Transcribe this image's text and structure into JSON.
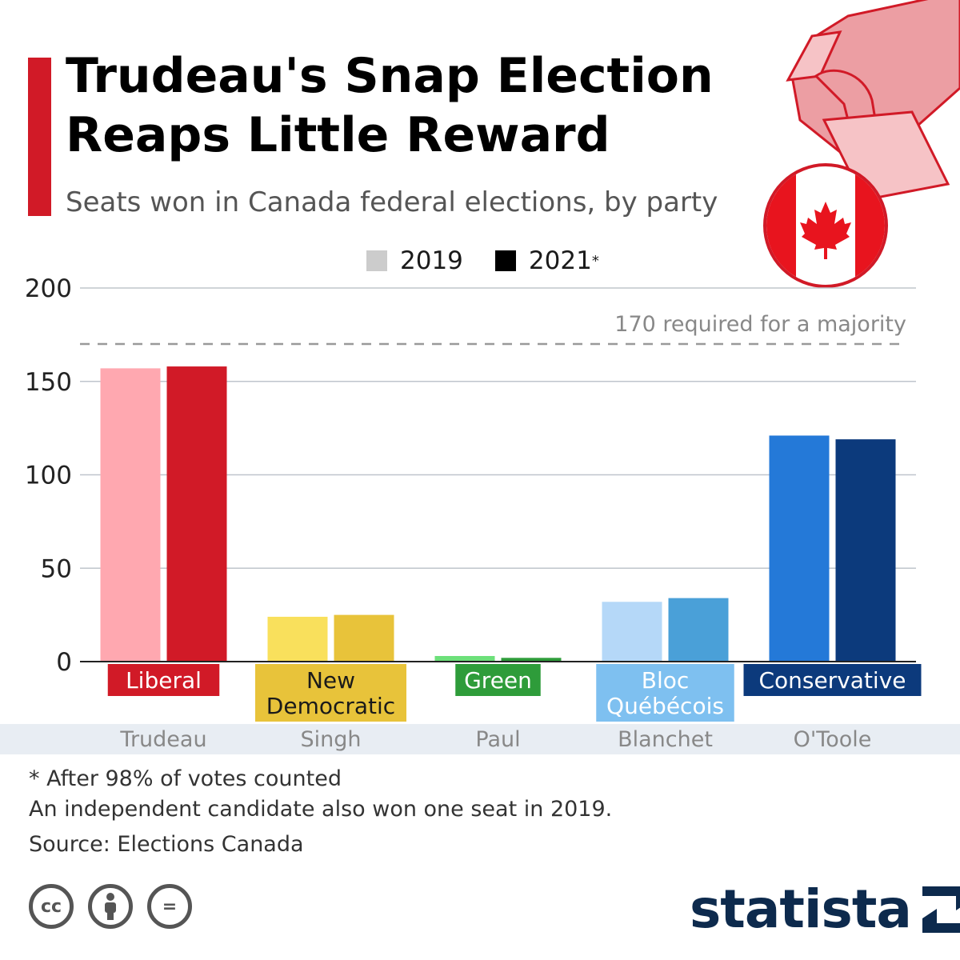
{
  "header": {
    "title": "Trudeau's Snap Election Reaps Little Reward",
    "subtitle": "Seats won in Canada federal elections, by party"
  },
  "legend": {
    "items": [
      {
        "label": "2019",
        "color": "#cccccc"
      },
      {
        "label": "2021",
        "mark": "*",
        "color": "#000000"
      }
    ]
  },
  "chart_data": {
    "type": "bar",
    "title": "Trudeau's Snap Election Reaps Little Reward",
    "subtitle": "Seats won in Canada federal elections, by party",
    "categories": [
      "Liberal",
      "New Democratic",
      "Green",
      "Bloc Québécois",
      "Conservative"
    ],
    "leaders": [
      "Trudeau",
      "Singh",
      "Paul",
      "Blanchet",
      "O'Toole"
    ],
    "series": [
      {
        "name": "2019",
        "values": [
          157,
          24,
          3,
          32,
          121
        ]
      },
      {
        "name": "2021*",
        "values": [
          158,
          25,
          2,
          34,
          119
        ]
      }
    ],
    "colors_2019": [
      "#ffa8b0",
      "#f9e05c",
      "#6de07a",
      "#b5d8f8",
      "#2479d8"
    ],
    "colors_2021": [
      "#d11a27",
      "#e8c33a",
      "#2e9c3a",
      "#4aa0d8",
      "#0c3a7c"
    ],
    "label_colors": [
      "#d11a27",
      "#e8c33a",
      "#2e9c3a",
      "#7ec0f0",
      "#0c3a7c"
    ],
    "label_text_colors": [
      "#ffffff",
      "#1a1a1a",
      "#ffffff",
      "#ffffff",
      "#ffffff"
    ],
    "ylim": [
      0,
      200
    ],
    "yticks": [
      0,
      50,
      100,
      150,
      200
    ],
    "reference_line": {
      "value": 170,
      "label": "170 required for a majority"
    },
    "grid": true,
    "legend_position": "top-center"
  },
  "footnotes": {
    "note1": "* After 98% of votes counted",
    "note2": "An independent candidate also won one seat in 2019.",
    "source": "Source: Elections Canada"
  },
  "license": {
    "icons": [
      "cc-icon",
      "attribution-icon",
      "no-derivatives-icon"
    ],
    "cc_text": "cc",
    "nd_text": "="
  },
  "brand": {
    "name": "statista",
    "color": "#0d2a4d"
  }
}
